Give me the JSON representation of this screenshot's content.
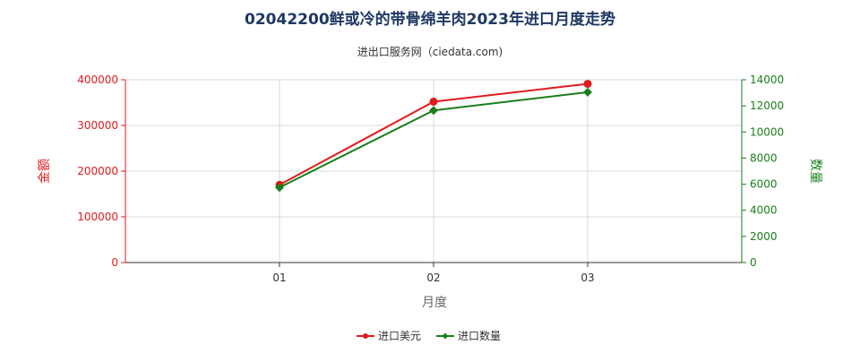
{
  "chart_data": {
    "type": "line",
    "title": "02042200鲜或冷的带骨绵羊肉2023年进口月度走势",
    "subtitle": "进出口服务网（ciedata.com)",
    "xlabel": "月度",
    "categories": [
      "01",
      "02",
      "03"
    ],
    "y_left": {
      "label": "金额",
      "lim": [
        0,
        400000
      ],
      "ticks": [
        "0",
        "100000",
        "200000",
        "300000",
        "400000"
      ]
    },
    "y_right": {
      "label": "数量",
      "lim": [
        0,
        14000
      ],
      "ticks": [
        "0",
        "2000",
        "4000",
        "6000",
        "8000",
        "10000",
        "12000",
        "14000"
      ]
    },
    "series": [
      {
        "name": "进口美元",
        "axis": "left",
        "color": "#e31a1c",
        "marker": "circle",
        "values": [
          170000,
          352000,
          391000
        ]
      },
      {
        "name": "进口数量",
        "axis": "right",
        "color": "#1a7f1a",
        "marker": "diamond",
        "values": [
          5750,
          11650,
          13050
        ]
      }
    ],
    "colors": {
      "left_axis": "#e31a1c",
      "right_axis": "#1a7f1a",
      "title": "#1f3864",
      "grid": "#d9d9d9"
    },
    "grid": true,
    "legend_position": "bottom-center"
  }
}
